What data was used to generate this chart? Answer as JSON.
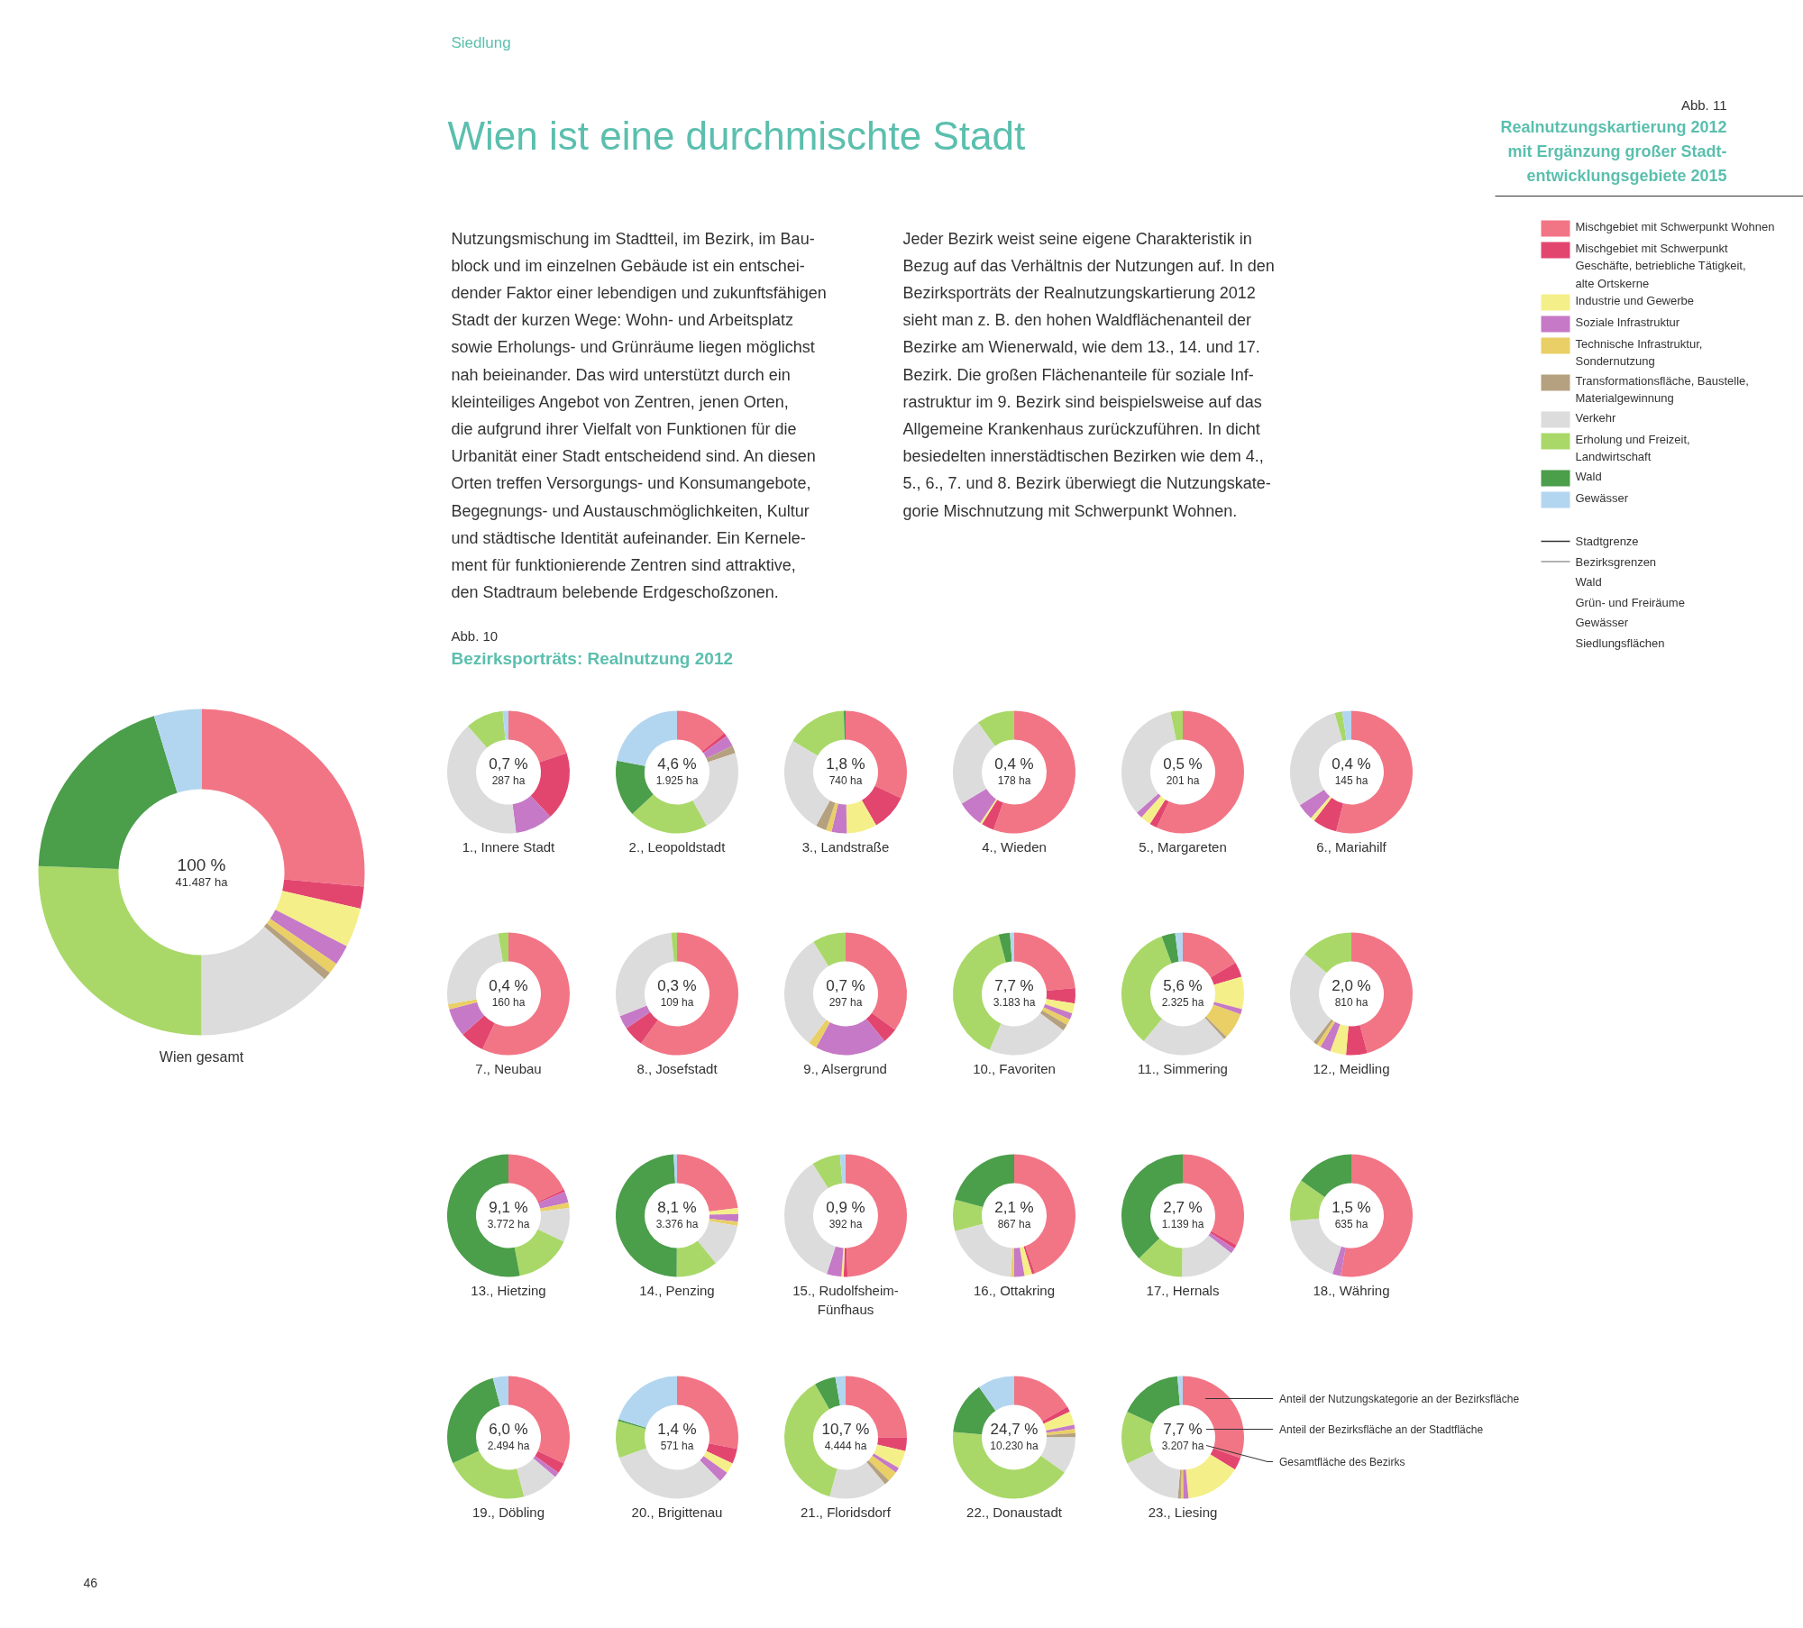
{
  "chart_data": [
    {
      "type": "other",
      "title": "Wien ist eine durchmischte Stadt",
      "annotations": [
        "Siedlung",
        "Nutzungsmischung im Stadtteil, im Bezirk, im Bau-\nblock und im einzelnen Gebäude ist ein entschei-\ndender Faktor einer lebendigen und zukunftsfähigen\nStadt der kurzen Wege: Wohn- und Arbeitsplatz\nsowie Erholungs- und Grünräume liegen möglichst\nnah beieinander. Das wird unterstützt durch ein\nkleinteiliges Angebot von Zentren, jenen Orten,\ndie aufgrund ihrer Vielfalt von Funktionen für die\nUrbanität einer Stadt entscheidend sind. An diesen\nOrten treffen Versorgungs- und Konsumangebote,\nBegegnungs- und Austauschmöglichkeiten, Kultur\nund städtische Identität aufeinander. Ein Kernele-\nment für funktionierende Zentren sind attraktive,\nden Stadtraum belebende Erdgeschoßzonen.",
        "Jeder Bezirk weist seine eigene Charakteristik in\nBezug auf das Verhältnis der Nutzungen auf. In den\nBezirksporträts der Realnutzungskartierung 2012\nsieht man z. B. den hohen Waldflächenanteil der\nBezirke am Wienerwald, wie dem 13., 14. und 17.\nBezirk. Die großen Flächenanteile für soziale Inf-\nrastruktur im 9. Bezirk sind beispielsweise auf das\nAllgemeine Krankenhaus zurückzuführen. In dicht\nbesiedelten innerstädtischen Bezirken wie dem 4.,\n5., 6., 7. und 8. Bezirk überwiegt die Nutzungskate-\ngorie Mischnutzung mit Schwerpunkt Wohnen.",
        "Abb. 10",
        "Bezirksporträts: Realnutzung 2012",
        "Abb. 11",
        "Realnutzungskartierung 2012\nmit Ergänzung großer Stadt-\nentwicklungsgebiete 2015",
        "Stadtgrenze",
        "Bezirksgrenzen",
        "Wald",
        "Grün- und Freiräume",
        "Gewässer",
        "Siedlungsflächen",
        "46"
      ]
    },
    {
      "type": "donut",
      "title": "Wien gesamt",
      "legend": "top right",
      "annotations": [
        "100 %",
        "41.487 ha"
      ],
      "categories": [
        "Mischgebiet mit Schwerpunkt Wohnen",
        "Mischgebiet mit Schwerpunkt Geschäfte, betriebliche Tätigkeit, alte Ortskerne",
        "Industrie und Gewerbe",
        "Soziale Infrastruktur",
        "Technische Infrastruktur, Sondernutzung",
        "Transformationsfläche, Baustelle, Materialgewinnung",
        "Verkehr",
        "Erholung und Freizeit, Landwirtschaft",
        "Wald",
        "Gewässer"
      ],
      "colors": [
        "#f27585",
        "#e2466f",
        "#f5ef8a",
        "#c679c6",
        "#e9cf65",
        "#b5a180",
        "#dcdcdc",
        "#a9d868",
        "#4b9e4a",
        "#b3d6f0"
      ],
      "values": [
        26.4,
        2.2,
        3.9,
        2.0,
        1.1,
        0.8,
        13.6,
        25.6,
        19.7,
        4.7
      ]
    },
    {
      "type": "donut",
      "title": "1., Innere Stadt",
      "annotations": [
        "0,7 %",
        "287 ha"
      ],
      "categories": [
        null,
        null,
        null,
        null,
        null,
        null,
        null,
        null,
        null,
        null
      ],
      "colors": [
        "#f27585",
        "#e2466f",
        "#f5ef8a",
        "#c679c6",
        "#e9cf65",
        "#b5a180",
        "#dcdcdc",
        "#a9d868",
        "#4b9e4a",
        "#b3d6f0"
      ],
      "values": [
        20,
        18,
        0,
        10,
        0,
        0,
        40.5,
        10,
        0,
        1.5
      ]
    },
    {
      "type": "donut",
      "title": "2., Leopoldstadt",
      "annotations": [
        "4,6 %",
        "1.925 ha"
      ],
      "categories": [
        null,
        null,
        null,
        null,
        null,
        null,
        null,
        null,
        null,
        null
      ],
      "colors": [
        "#f27585",
        "#e2466f",
        "#f5ef8a",
        "#c679c6",
        "#e9cf65",
        "#b5a180",
        "#dcdcdc",
        "#a9d868",
        "#4b9e4a",
        "#b3d6f0"
      ],
      "values": [
        14,
        1,
        0,
        3,
        0,
        2,
        22,
        21,
        15,
        22
      ]
    },
    {
      "type": "donut",
      "title": "3., Landstraße",
      "annotations": [
        "1,8 %",
        "740 ha"
      ],
      "categories": [
        null,
        null,
        null,
        null,
        null,
        null,
        null,
        null,
        null,
        null
      ],
      "colors": [
        "#f27585",
        "#e2466f",
        "#f5ef8a",
        "#c679c6",
        "#e9cf65",
        "#b5a180",
        "#dcdcdc",
        "#a9d868",
        "#4b9e4a",
        "#b3d6f0"
      ],
      "values": [
        32,
        9.7,
        8,
        4,
        1.5,
        2.8,
        25.5,
        16,
        0.5,
        0
      ]
    },
    {
      "type": "donut",
      "title": "4., Wieden",
      "annotations": [
        "0,4 %",
        "178 ha"
      ],
      "categories": [
        null,
        null,
        null,
        null,
        null,
        null,
        null,
        null,
        null,
        null
      ],
      "colors": [
        "#f27585",
        "#e2466f",
        "#f5ef8a",
        "#c679c6",
        "#e9cf65",
        "#b5a180",
        "#dcdcdc",
        "#a9d868",
        "#4b9e4a",
        "#b3d6f0"
      ],
      "values": [
        55.5,
        3.3,
        0.6,
        7,
        0,
        0,
        23.6,
        10,
        0,
        0
      ]
    },
    {
      "type": "donut",
      "title": "5., Margareten",
      "annotations": [
        "0,5 %",
        "201 ha"
      ],
      "categories": [
        null,
        null,
        null,
        null,
        null,
        null,
        null,
        null,
        null,
        null
      ],
      "colors": [
        "#f27585",
        "#e2466f",
        "#f5ef8a",
        "#c679c6",
        "#e9cf65",
        "#b5a180",
        "#dcdcdc",
        "#a9d868",
        "#4b9e4a",
        "#b3d6f0"
      ],
      "values": [
        57,
        2,
        2.8,
        1.7,
        0,
        0,
        33.3,
        3.2,
        0,
        0
      ]
    },
    {
      "type": "donut",
      "title": "6., Mariahilf",
      "annotations": [
        "0,4 %",
        "145 ha"
      ],
      "categories": [
        null,
        null,
        null,
        null,
        null,
        null,
        null,
        null,
        null,
        null
      ],
      "colors": [
        "#f27585",
        "#e2466f",
        "#f5ef8a",
        "#c679c6",
        "#e9cf65",
        "#b5a180",
        "#dcdcdc",
        "#a9d868",
        "#4b9e4a",
        "#b3d6f0"
      ],
      "values": [
        54,
        6.4,
        1.1,
        4.4,
        0,
        0,
        29.7,
        2,
        0,
        2.4
      ]
    },
    {
      "type": "donut",
      "title": "7., Neubau",
      "annotations": [
        "0,4 %",
        "160 ha"
      ],
      "categories": [
        null,
        null,
        null,
        null,
        null,
        null,
        null,
        null,
        null,
        null
      ],
      "colors": [
        "#f27585",
        "#e2466f",
        "#f5ef8a",
        "#c679c6",
        "#e9cf65",
        "#b5a180",
        "#dcdcdc",
        "#a9d868",
        "#4b9e4a",
        "#b3d6f0"
      ],
      "values": [
        57,
        6.4,
        0,
        7.5,
        1.4,
        0,
        25,
        2.7,
        0,
        0
      ]
    },
    {
      "type": "donut",
      "title": "8., Josefstadt",
      "annotations": [
        "0,3 %",
        "109 ha"
      ],
      "categories": [
        null,
        null,
        null,
        null,
        null,
        null,
        null,
        null,
        null,
        null
      ],
      "colors": [
        "#f27585",
        "#e2466f",
        "#f5ef8a",
        "#c679c6",
        "#e9cf65",
        "#b5a180",
        "#dcdcdc",
        "#a9d868",
        "#4b9e4a",
        "#b3d6f0"
      ],
      "values": [
        60,
        5.5,
        0,
        3.6,
        0,
        0,
        29.4,
        1.5,
        0,
        0
      ]
    },
    {
      "type": "donut",
      "title": "9., Alsergrund",
      "annotations": [
        "0,7 %",
        "297 ha"
      ],
      "categories": [
        null,
        null,
        null,
        null,
        null,
        null,
        null,
        null,
        null,
        null
      ],
      "colors": [
        "#f27585",
        "#e2466f",
        "#f5ef8a",
        "#c679c6",
        "#e9cf65",
        "#b5a180",
        "#dcdcdc",
        "#a9d868",
        "#4b9e4a",
        "#b3d6f0"
      ],
      "values": [
        35,
        4,
        0,
        19,
        2.2,
        0,
        31,
        8.8,
        0,
        0
      ]
    },
    {
      "type": "donut",
      "title": "10., Favoriten",
      "annotations": [
        "7,7 %",
        "3.183 ha"
      ],
      "categories": [
        null,
        null,
        null,
        null,
        null,
        null,
        null,
        null,
        null,
        null
      ],
      "colors": [
        "#f27585",
        "#e2466f",
        "#f5ef8a",
        "#c679c6",
        "#e9cf65",
        "#b5a180",
        "#dcdcdc",
        "#a9d868",
        "#4b9e4a",
        "#b3d6f0"
      ],
      "values": [
        23.5,
        4,
        2.7,
        1.7,
        1.6,
        1.7,
        21.4,
        39.3,
        3,
        1.1
      ]
    },
    {
      "type": "donut",
      "title": "11., Simmering",
      "annotations": [
        "5,6 %",
        "2.325 ha"
      ],
      "categories": [
        null,
        null,
        null,
        null,
        null,
        null,
        null,
        null,
        null,
        null
      ],
      "colors": [
        "#f27585",
        "#e2466f",
        "#f5ef8a",
        "#c679c6",
        "#e9cf65",
        "#b5a180",
        "#dcdcdc",
        "#a9d868",
        "#4b9e4a",
        "#b3d6f0"
      ],
      "values": [
        16.5,
        4,
        8.5,
        1.4,
        7,
        0.8,
        22.8,
        33.4,
        3.6,
        2
      ]
    },
    {
      "type": "donut",
      "title": "12., Meidling",
      "annotations": [
        "2,0 %",
        "810 ha"
      ],
      "categories": [
        null,
        null,
        null,
        null,
        null,
        null,
        null,
        null,
        null,
        null
      ],
      "colors": [
        "#f27585",
        "#e2466f",
        "#f5ef8a",
        "#c679c6",
        "#e9cf65",
        "#b5a180",
        "#dcdcdc",
        "#a9d868",
        "#4b9e4a",
        "#b3d6f0"
      ],
      "values": [
        45.8,
        5.6,
        4.2,
        2.8,
        1.1,
        1.1,
        25.6,
        13.8,
        0,
        0
      ]
    },
    {
      "type": "donut",
      "title": "13., Hietzing",
      "annotations": [
        "9,1 %",
        "3.772 ha"
      ],
      "categories": [
        null,
        null,
        null,
        null,
        null,
        null,
        null,
        null,
        null,
        null
      ],
      "colors": [
        "#f27585",
        "#e2466f",
        "#f5ef8a",
        "#c679c6",
        "#e9cf65",
        "#b5a180",
        "#dcdcdc",
        "#a9d868",
        "#4b9e4a",
        "#b3d6f0"
      ],
      "values": [
        18,
        0.6,
        0,
        3,
        1.4,
        0,
        9,
        15,
        53,
        0
      ]
    },
    {
      "type": "donut",
      "title": "14., Penzing",
      "annotations": [
        "8,1 %",
        "3.376 ha"
      ],
      "categories": [
        null,
        null,
        null,
        null,
        null,
        null,
        null,
        null,
        null,
        null
      ],
      "colors": [
        "#f27585",
        "#e2466f",
        "#f5ef8a",
        "#c679c6",
        "#e9cf65",
        "#b5a180",
        "#dcdcdc",
        "#a9d868",
        "#4b9e4a",
        "#b3d6f0"
      ],
      "values": [
        23,
        0,
        1.6,
        2,
        1.1,
        0,
        11.4,
        11,
        49,
        0.9
      ]
    },
    {
      "type": "donut",
      "title": "15., Rudolfsheim-Fünfhaus",
      "annotations": [
        "0,9 %",
        "392 ha"
      ],
      "categories": [
        null,
        null,
        null,
        null,
        null,
        null,
        null,
        null,
        null,
        null
      ],
      "colors": [
        "#f27585",
        "#e2466f",
        "#f5ef8a",
        "#c679c6",
        "#e9cf65",
        "#b5a180",
        "#dcdcdc",
        "#a9d868",
        "#4b9e4a",
        "#b3d6f0"
      ],
      "values": [
        49.5,
        1,
        0.6,
        3.9,
        0,
        0,
        36,
        7.5,
        0,
        1.5
      ]
    },
    {
      "type": "donut",
      "title": "16., Ottakring",
      "annotations": [
        "2,1 %",
        "867 ha"
      ],
      "categories": [
        null,
        null,
        null,
        null,
        null,
        null,
        null,
        null,
        null,
        null
      ],
      "colors": [
        "#f27585",
        "#e2466f",
        "#f5ef8a",
        "#c679c6",
        "#e9cf65",
        "#b5a180",
        "#dcdcdc",
        "#a9d868",
        "#4b9e4a",
        "#b3d6f0"
      ],
      "values": [
        44.5,
        0.8,
        2,
        2.8,
        0.8,
        0,
        20,
        8.3,
        20.8,
        0
      ]
    },
    {
      "type": "donut",
      "title": "17., Hernals",
      "annotations": [
        "2,7 %",
        "1.139 ha"
      ],
      "categories": [
        null,
        null,
        null,
        null,
        null,
        null,
        null,
        null,
        null,
        null
      ],
      "colors": [
        "#f27585",
        "#e2466f",
        "#f5ef8a",
        "#c679c6",
        "#e9cf65",
        "#b5a180",
        "#dcdcdc",
        "#a9d868",
        "#4b9e4a",
        "#b3d6f0"
      ],
      "values": [
        33,
        1,
        0,
        1.5,
        0,
        0,
        14.7,
        12.5,
        37.3,
        0
      ]
    },
    {
      "type": "donut",
      "title": "18., Währing",
      "annotations": [
        "1,5 %",
        "635 ha"
      ],
      "categories": [
        null,
        null,
        null,
        null,
        null,
        null,
        null,
        null,
        null,
        null
      ],
      "colors": [
        "#f27585",
        "#e2466f",
        "#f5ef8a",
        "#c679c6",
        "#e9cf65",
        "#b5a180",
        "#dcdcdc",
        "#a9d868",
        "#4b9e4a",
        "#b3d6f0"
      ],
      "values": [
        52.8,
        0,
        0,
        2.2,
        0,
        0,
        18.6,
        11.1,
        15.3,
        0
      ]
    },
    {
      "type": "donut",
      "title": "19., Döbling",
      "annotations": [
        "6,0 %",
        "2.494 ha"
      ],
      "categories": [
        null,
        null,
        null,
        null,
        null,
        null,
        null,
        null,
        null,
        null
      ],
      "colors": [
        "#f27585",
        "#e2466f",
        "#f5ef8a",
        "#c679c6",
        "#e9cf65",
        "#b5a180",
        "#dcdcdc",
        "#a9d868",
        "#4b9e4a",
        "#b3d6f0"
      ],
      "values": [
        32,
        2.8,
        0,
        1.4,
        0,
        0,
        9.7,
        22.2,
        27.8,
        4.1
      ]
    },
    {
      "type": "donut",
      "title": "20., Brigittenau",
      "annotations": [
        "1,4 %",
        "571 ha"
      ],
      "categories": [
        null,
        null,
        null,
        null,
        null,
        null,
        null,
        null,
        null,
        null
      ],
      "colors": [
        "#f27585",
        "#e2466f",
        "#f5ef8a",
        "#c679c6",
        "#e9cf65",
        "#b5a180",
        "#dcdcdc",
        "#a9d868",
        "#4b9e4a",
        "#b3d6f0"
      ],
      "values": [
        28,
        4,
        2.8,
        2.8,
        0,
        0,
        32,
        9.7,
        0.5,
        20.2
      ]
    },
    {
      "type": "donut",
      "title": "21., Floridsdorf",
      "annotations": [
        "10,7 %",
        "4.444 ha"
      ],
      "categories": [
        null,
        null,
        null,
        null,
        null,
        null,
        null,
        null,
        null,
        null
      ],
      "colors": [
        "#f27585",
        "#e2466f",
        "#f5ef8a",
        "#c679c6",
        "#e9cf65",
        "#b5a180",
        "#dcdcdc",
        "#a9d868",
        "#4b9e4a",
        "#b3d6f0"
      ],
      "values": [
        25,
        3.6,
        4.7,
        1.4,
        2.8,
        1.4,
        15.3,
        37.5,
        5.6,
        2.7
      ]
    },
    {
      "type": "donut",
      "title": "22., Donaustadt",
      "annotations": [
        "24,7 %",
        "10.230 ha"
      ],
      "categories": [
        null,
        null,
        null,
        null,
        null,
        null,
        null,
        null,
        null,
        null
      ],
      "colors": [
        "#f27585",
        "#e2466f",
        "#f5ef8a",
        "#c679c6",
        "#e9cf65",
        "#b5a180",
        "#dcdcdc",
        "#a9d868",
        "#4b9e4a",
        "#b3d6f0"
      ],
      "values": [
        16.7,
        1.4,
        3.6,
        1.1,
        1.1,
        1.1,
        9.7,
        41.7,
        13.9,
        9.7
      ]
    },
    {
      "type": "donut",
      "title": "23., Liesing",
      "annotations": [
        "7,7 %",
        "3.207 ha",
        "Anteil der Nutzungskategorie an der Bezirksfläche",
        "Anteil der Bezirksfläche an der Stadtfläche",
        "Gesamtfläche des Bezirks"
      ],
      "categories": [
        null,
        null,
        null,
        null,
        null,
        null,
        null,
        null,
        null,
        null
      ],
      "colors": [
        "#f27585",
        "#e2466f",
        "#f5ef8a",
        "#c679c6",
        "#e9cf65",
        "#b5a180",
        "#dcdcdc",
        "#a9d868",
        "#4b9e4a",
        "#b3d6f0"
      ],
      "values": [
        30.5,
        3.3,
        14.7,
        1.4,
        0.6,
        0.8,
        16.7,
        13.9,
        16.7,
        1.4
      ]
    }
  ]
}
